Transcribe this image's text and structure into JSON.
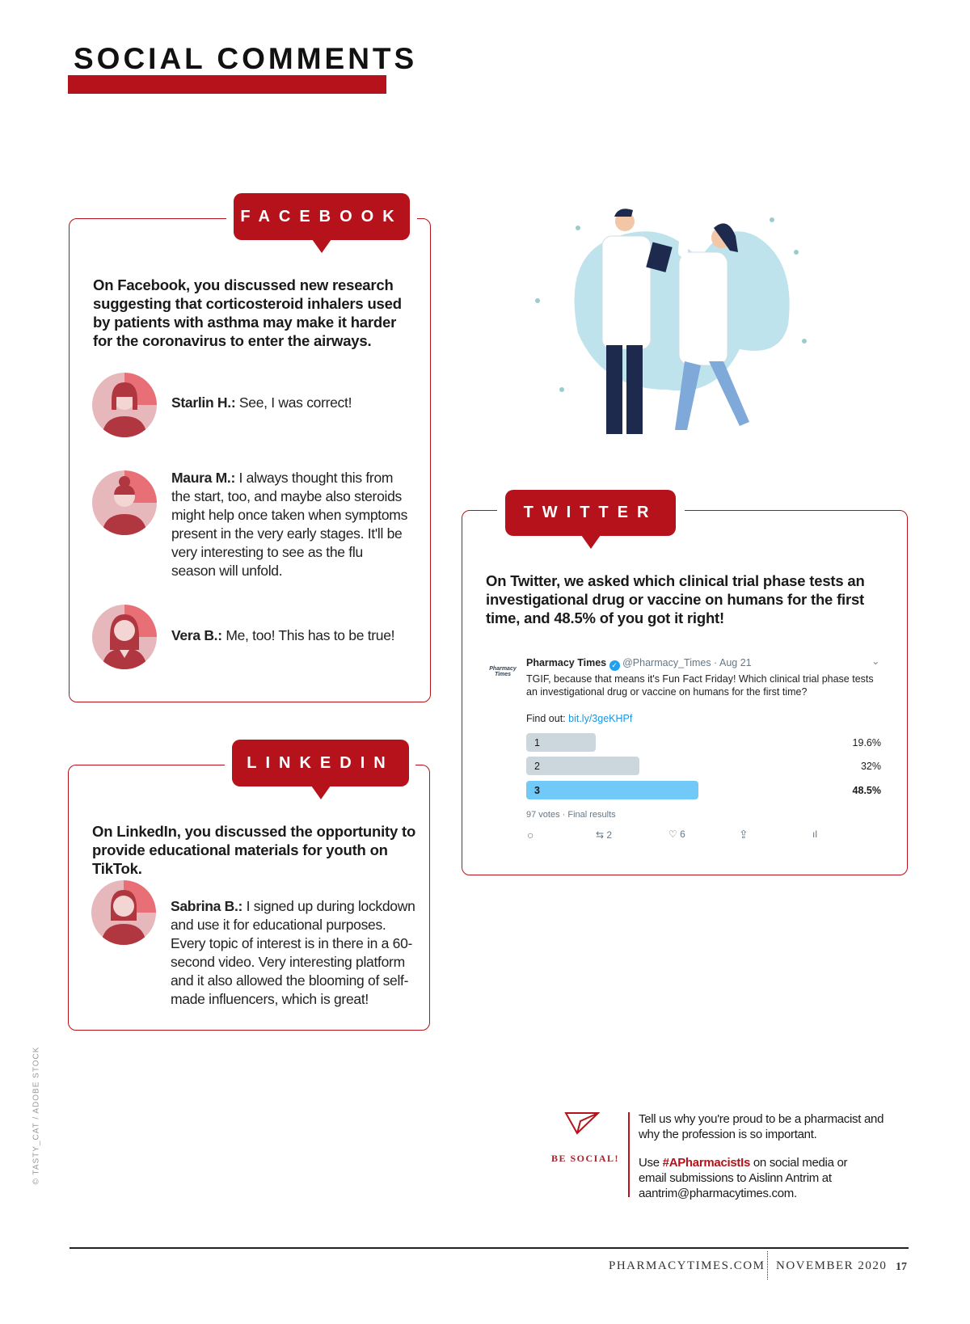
{
  "header": {
    "title": "SOCIAL COMMENTS"
  },
  "facebook": {
    "tab": "FACEBOOK",
    "intro": "On Facebook, you discussed new research suggesting that corticosteroid inhalers used by patients with asthma may make it harder for the coronavirus to enter the airways.",
    "comments": [
      {
        "name": "Starlin H.:",
        "text": " See, I was correct!"
      },
      {
        "name": "Maura M.:",
        "text": " I always thought this from the start, too, and maybe also steroids might help once taken when symptoms present in the very early stages. It'll be very interesting to see as the flu season will unfold."
      },
      {
        "name": "Vera B.:",
        "text": " Me, too! This has to be true!"
      }
    ]
  },
  "linkedin": {
    "tab": "LINKEDIN",
    "intro": "On LinkedIn, you discussed the opportunity to provide educational materials for youth on TikTok.",
    "comments": [
      {
        "name": "Sabrina B.:",
        "text": " I signed up during lockdown and use it for educational purposes. Every topic of interest is in there in a 60-second video. Very interesting platform and it also allowed the blooming of self-made influencers, which is great!"
      }
    ]
  },
  "twitter": {
    "tab": "TWITTER",
    "intro": "On Twitter, we asked which clinical trial phase tests an investigational drug or vaccine on humans for the first time, and 48.5% of you got it right!",
    "tweet": {
      "logo_text": "Pharmacy Times",
      "author": "Pharmacy Times",
      "handle": "@Pharmacy_Times · Aug 21",
      "text": "TGIF, because that means it's Fun Fact Friday! Which clinical trial phase tests an investigational drug or vaccine on humans for the first time?",
      "find_out": "Find out: ",
      "link": "bit.ly/3geKHPf",
      "poll": [
        {
          "label": "1",
          "percent": 19.6,
          "display": "19.6%"
        },
        {
          "label": "2",
          "percent": 32,
          "display": "32%"
        },
        {
          "label": "3",
          "percent": 48.5,
          "display": "48.5%",
          "winner": true
        }
      ],
      "votes": "97 votes · Final results",
      "retweets": "2",
      "likes": "6",
      "colors": {
        "winner": "#71c9f8",
        "bar": "#ccd6dd",
        "link": "#1b95e0"
      }
    }
  },
  "be_social": {
    "label": "BE SOCIAL!",
    "line1": "Tell us why you're proud to be a pharmacist and why the profession is so important.",
    "use": "Use ",
    "hashtag": "#APharmacistIs",
    "line2": " on social media or email submissions to Aislinn Antrim at aantrim@pharmacytimes.com."
  },
  "credit": "© TASTY_CAT / ADOBE STOCK",
  "footer": {
    "site": "PHARMACYTIMES.COM",
    "issue": "NOVEMBER 2020",
    "page": "17"
  },
  "colors": {
    "accent": "#b5121b"
  }
}
